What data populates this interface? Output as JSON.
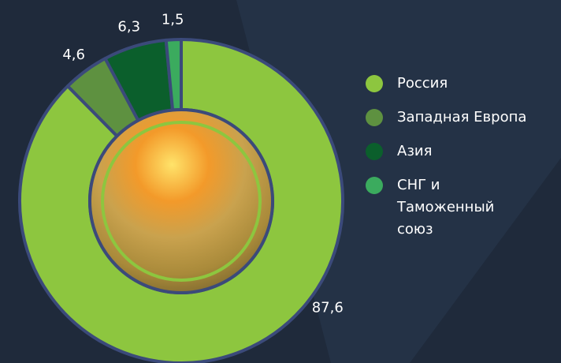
{
  "chart_data": {
    "type": "donut",
    "categories": [
      "Россия",
      "Западная Европа",
      "Азия",
      "СНГ и Таможенный союз"
    ],
    "values": [
      87.6,
      4.6,
      6.3,
      1.5
    ],
    "value_labels": [
      "87,6",
      "4,6",
      "6,3",
      "1,5"
    ],
    "colors": [
      "#8dc63f",
      "#5e9140",
      "#0b5f2c",
      "#3bab5e"
    ],
    "legend": "right"
  }
}
